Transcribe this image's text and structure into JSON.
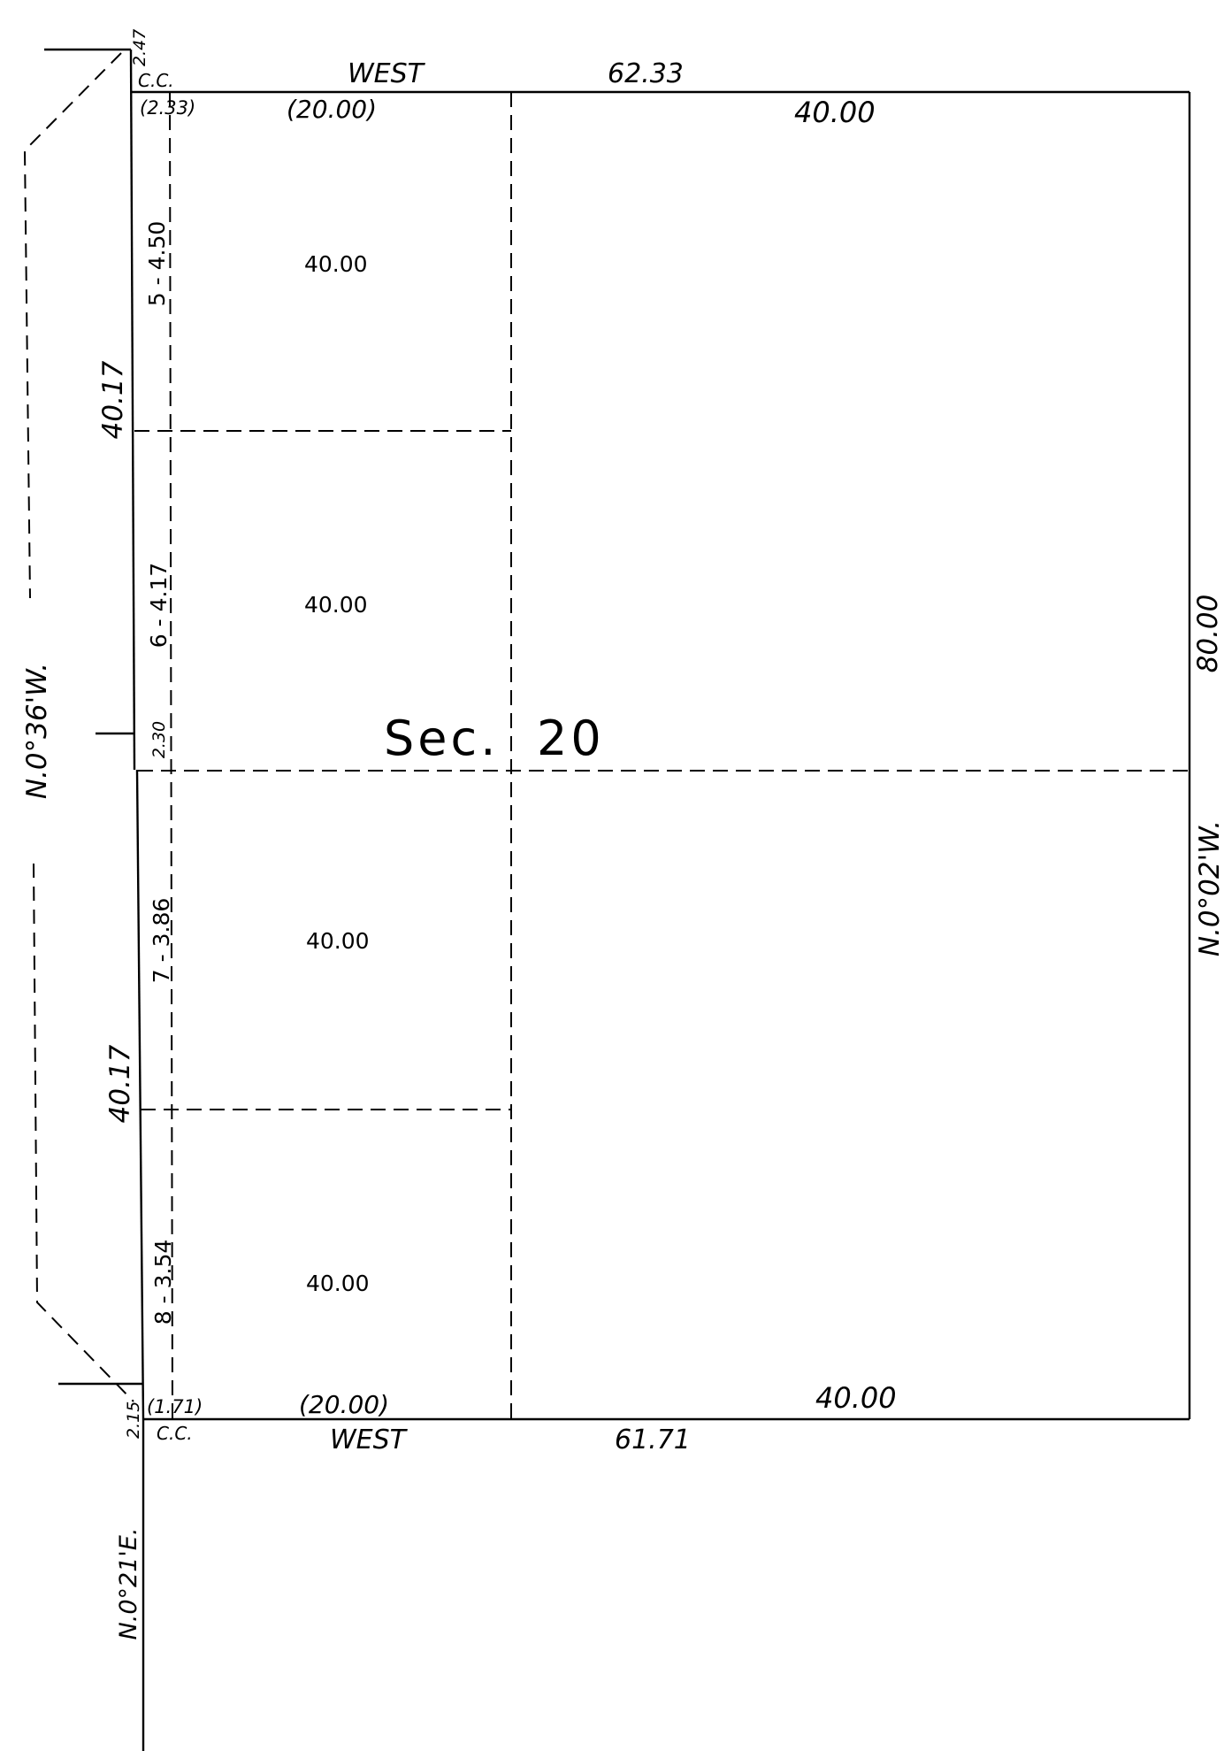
{
  "section": {
    "prefix": "Sec.",
    "number": "20"
  },
  "north_edge": {
    "bearing": "WEST",
    "total_length": "62.33",
    "corner_label": "C.C.",
    "lot_width": "(2.33)",
    "strip_width": "(20.00)",
    "east_half": "40.00",
    "offset": "2.47"
  },
  "south_edge": {
    "bearing": "WEST",
    "total_length": "61.71",
    "corner_label": "C.C.",
    "lot_width": "(1.71)",
    "strip_width": "(20.00)",
    "east_half": "40.00",
    "offset": "2.15"
  },
  "west_edge": {
    "bearing": "N.0°36'W.",
    "north_quarter": "40.17",
    "south_quarter": "40.17",
    "midpoint_offset": "2.30"
  },
  "east_edge": {
    "length": "80.00",
    "bearing": "N.0°02'W."
  },
  "south_line_bearing": "N.0°21'E.",
  "lots": [
    {
      "label": "5 - 4.50",
      "acres": "40.00"
    },
    {
      "label": "6 - 4.17",
      "acres": "40.00"
    },
    {
      "label": "7 - 3.86",
      "acres": "40.00"
    },
    {
      "label": "8 - 3.54",
      "acres": "40.00"
    }
  ]
}
